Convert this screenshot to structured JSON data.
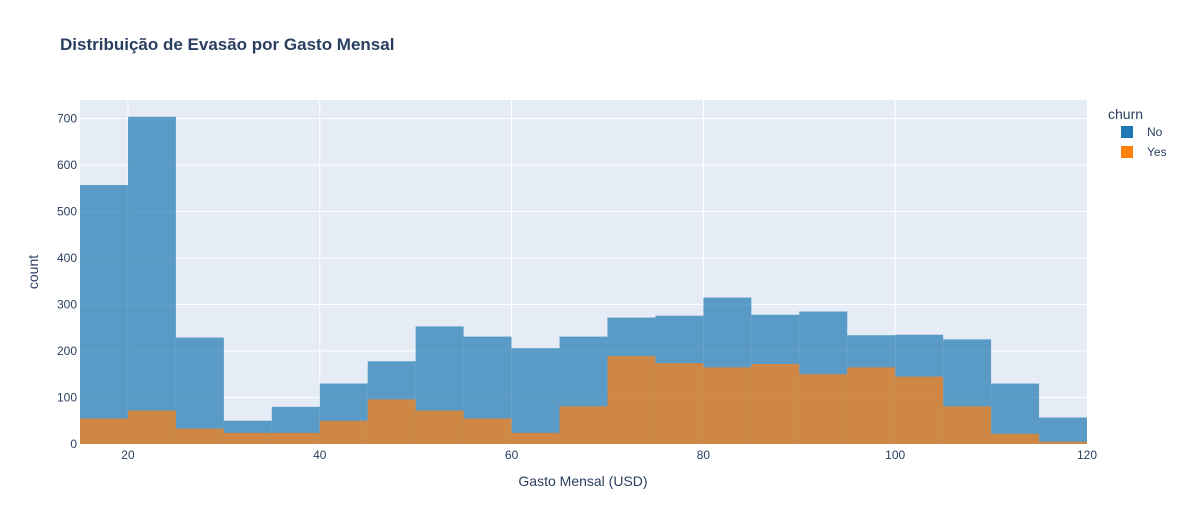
{
  "chart_data": {
    "type": "bar",
    "title": "Distribuição de Evasão por Gasto Mensal",
    "xlabel": "Gasto Mensal (USD)",
    "ylabel": "count",
    "xlim": [
      15,
      120
    ],
    "ylim": [
      0,
      740
    ],
    "x_ticks": [
      20,
      40,
      60,
      80,
      100,
      120
    ],
    "y_ticks": [
      0,
      100,
      200,
      300,
      400,
      500,
      600,
      700
    ],
    "grid": true,
    "bin_width": 5,
    "bin_starts": [
      15,
      20,
      25,
      30,
      35,
      40,
      45,
      50,
      55,
      60,
      65,
      70,
      75,
      80,
      85,
      90,
      95,
      100,
      105,
      110,
      115
    ],
    "legend": {
      "title": "churn",
      "position": "top-right"
    },
    "series": [
      {
        "name": "No",
        "color": "#1f77b4",
        "values": [
          557,
          704,
          229,
          50,
          80,
          130,
          178,
          253,
          231,
          206,
          231,
          272,
          276,
          315,
          278,
          285,
          234,
          235,
          225,
          130,
          57
        ]
      },
      {
        "name": "Yes",
        "color": "#ff7f0e",
        "values": [
          55,
          72,
          33,
          24,
          24,
          50,
          96,
          72,
          55,
          24,
          81,
          189,
          174,
          165,
          172,
          150,
          165,
          145,
          81,
          22,
          5
        ]
      }
    ]
  }
}
